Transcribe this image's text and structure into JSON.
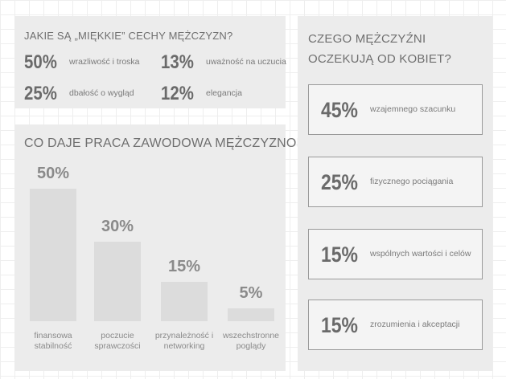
{
  "soft_traits": {
    "title": "JAKIE SĄ „MIĘKKIE” CECHY MĘŻCZYZN?",
    "items": [
      {
        "percent": "50%",
        "text": "wrazliwość i troska"
      },
      {
        "percent": "13%",
        "text": "uważność na uczucia"
      },
      {
        "percent": "25%",
        "text": "dbałość o wygląd"
      },
      {
        "percent": "12%",
        "text": "elegancja"
      }
    ]
  },
  "chart_data": {
    "type": "bar",
    "title": "CO DAJE PRACA ZAWODOWA MĘŻCZYZNOM?",
    "categories": [
      "finansowa stabilność",
      "poczucie sprawczości",
      "przynależność i networking",
      "wszechstronne poglądy"
    ],
    "values": [
      50,
      30,
      15,
      5
    ],
    "value_labels": [
      "50%",
      "30%",
      "15%",
      "5%"
    ],
    "color": "#dcdcdc"
  },
  "expectations": {
    "title": "CZEGO MĘŻCZYŹNI OCZEKUJĄ OD KOBIET?",
    "items": [
      {
        "percent": "45%",
        "text": "wzajemnego szacunku"
      },
      {
        "percent": "25%",
        "text": "fizycznego pociągania"
      },
      {
        "percent": "15%",
        "text": "wspólnych wartości i celów"
      },
      {
        "percent": "15%",
        "text": "zrozumienia i akceptacji"
      }
    ]
  }
}
